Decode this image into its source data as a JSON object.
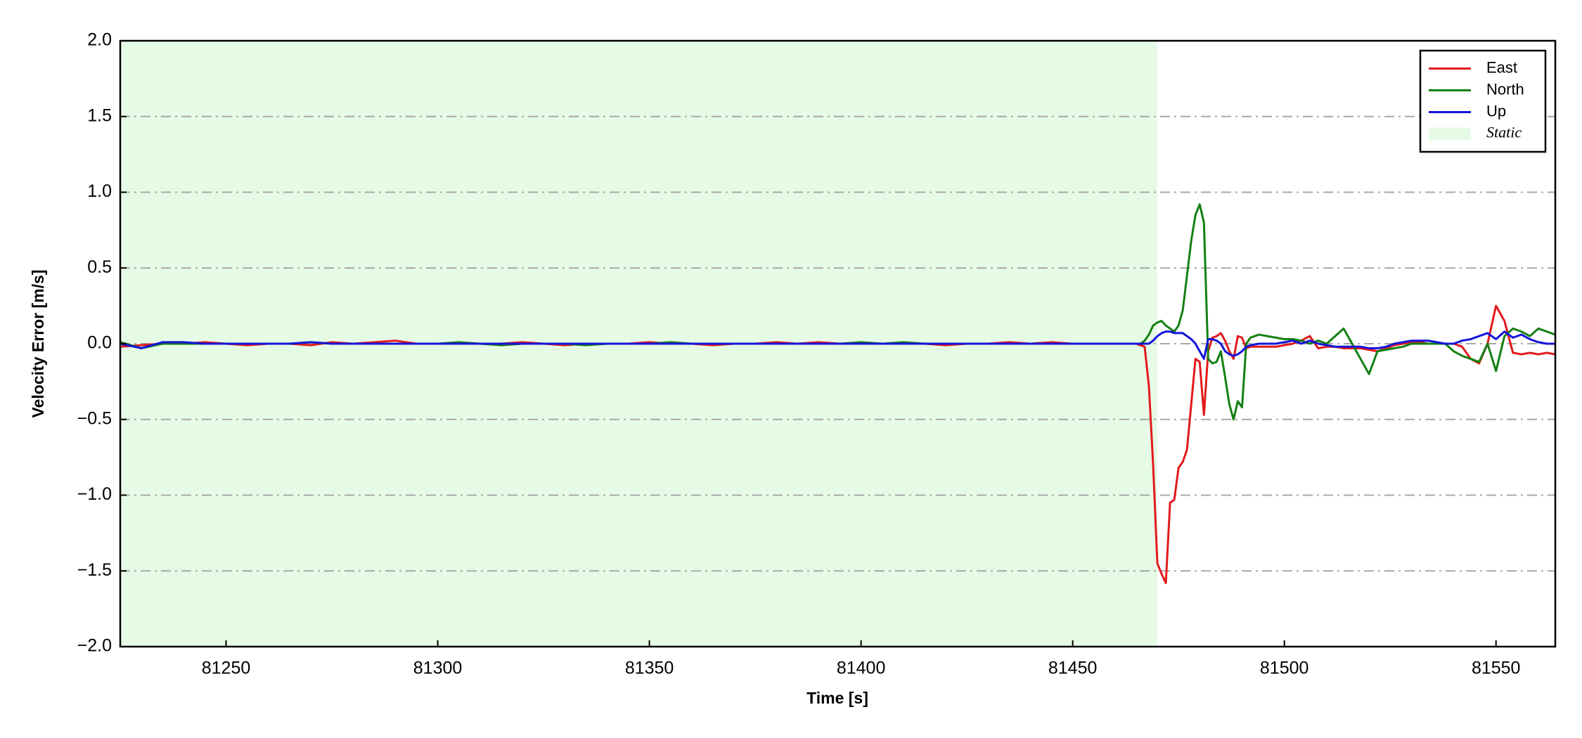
{
  "chart_data": {
    "type": "line",
    "xlabel": "Time [s]",
    "ylabel": "Velocity Error [m/s]",
    "xlim": [
      81225,
      81564
    ],
    "ylim": [
      -2,
      2
    ],
    "xticks": [
      81250,
      81300,
      81350,
      81400,
      81450,
      81500,
      81550
    ],
    "yticks": [
      {
        "value": 2,
        "label": "2.0"
      },
      {
        "value": 1.5,
        "label": "1.5"
      },
      {
        "value": 1,
        "label": "1.0"
      },
      {
        "value": 0.5,
        "label": "0.5"
      },
      {
        "value": 0,
        "label": "0.0"
      },
      {
        "value": -0.5,
        "label": "−0.5"
      },
      {
        "value": -1,
        "label": "−1.0"
      },
      {
        "value": -1.5,
        "label": "−1.5"
      },
      {
        "value": -2,
        "label": "−2.0"
      }
    ],
    "grid": true,
    "legend_position": "upper-right",
    "shaded_regions": [
      {
        "name": "Static",
        "color": "#e6fbe6",
        "x": [
          81225,
          81470
        ]
      }
    ],
    "x": [
      81225,
      81230,
      81235,
      81240,
      81245,
      81250,
      81255,
      81260,
      81265,
      81270,
      81275,
      81280,
      81285,
      81290,
      81295,
      81300,
      81305,
      81310,
      81315,
      81320,
      81325,
      81330,
      81335,
      81340,
      81345,
      81350,
      81355,
      81360,
      81365,
      81370,
      81375,
      81380,
      81385,
      81390,
      81395,
      81400,
      81405,
      81410,
      81415,
      81420,
      81425,
      81430,
      81435,
      81440,
      81445,
      81450,
      81455,
      81460,
      81465,
      81466,
      81467,
      81468,
      81469,
      81470,
      81471,
      81472,
      81473,
      81474,
      81475,
      81476,
      81477,
      81478,
      81479,
      81480,
      81481,
      81482,
      81483,
      81484,
      81485,
      81486,
      81487,
      81488,
      81489,
      81490,
      81491,
      81492,
      81494,
      81496,
      81498,
      81500,
      81502,
      81504,
      81506,
      81508,
      81510,
      81512,
      81514,
      81516,
      81518,
      81520,
      81522,
      81524,
      81526,
      81528,
      81530,
      81532,
      81534,
      81536,
      81538,
      81540,
      81542,
      81544,
      81546,
      81548,
      81550,
      81552,
      81554,
      81556,
      81558,
      81560,
      81562,
      81564
    ],
    "series": [
      {
        "name": "East",
        "color": "#e31a1c",
        "values": [
          -0.02,
          -0.01,
          0.0,
          0.0,
          0.01,
          0.0,
          -0.01,
          0.0,
          0.0,
          -0.01,
          0.01,
          0.0,
          0.01,
          0.02,
          0.0,
          0.0,
          0.0,
          0.0,
          0.0,
          0.01,
          0.0,
          -0.01,
          0.0,
          0.0,
          0.0,
          0.01,
          0.0,
          0.0,
          -0.01,
          0.0,
          0.0,
          0.01,
          0.0,
          0.01,
          0.0,
          0.0,
          0.0,
          0.0,
          0.0,
          -0.01,
          0.0,
          0.0,
          0.01,
          0.0,
          0.01,
          0.0,
          0.0,
          0.0,
          0.0,
          -0.01,
          -0.02,
          -0.28,
          -0.8,
          -1.45,
          -1.52,
          -1.58,
          -1.05,
          -1.03,
          -0.82,
          -0.78,
          -0.7,
          -0.4,
          -0.1,
          -0.12,
          -0.47,
          -0.05,
          0.04,
          0.05,
          0.07,
          0.02,
          -0.05,
          -0.1,
          0.05,
          0.04,
          -0.03,
          -0.02,
          -0.02,
          -0.02,
          -0.02,
          -0.01,
          0.0,
          0.02,
          0.05,
          -0.03,
          -0.02,
          -0.02,
          -0.03,
          -0.03,
          -0.03,
          -0.04,
          -0.05,
          -0.03,
          -0.01,
          0.0,
          0.01,
          0.01,
          0.0,
          0.0,
          0.0,
          0.0,
          -0.02,
          -0.1,
          -0.13,
          0.0,
          0.25,
          0.15,
          -0.06,
          -0.07,
          -0.06,
          -0.07,
          -0.06,
          -0.07
        ]
      },
      {
        "name": "North",
        "color": "#138013",
        "values": [
          0.01,
          -0.03,
          0.0,
          0.0,
          0.0,
          0.0,
          0.0,
          0.0,
          0.0,
          0.01,
          0.0,
          0.0,
          0.0,
          0.0,
          0.0,
          0.0,
          0.01,
          0.0,
          -0.01,
          0.0,
          0.0,
          0.0,
          -0.01,
          0.0,
          0.0,
          0.0,
          0.01,
          0.0,
          0.0,
          0.0,
          0.0,
          0.0,
          0.0,
          0.0,
          0.0,
          0.01,
          0.0,
          0.01,
          0.0,
          0.0,
          0.0,
          0.0,
          0.0,
          0.0,
          0.0,
          0.0,
          0.0,
          0.0,
          0.0,
          0.0,
          0.02,
          0.06,
          0.12,
          0.14,
          0.15,
          0.12,
          0.1,
          0.08,
          0.12,
          0.22,
          0.45,
          0.68,
          0.85,
          0.92,
          0.8,
          -0.1,
          -0.13,
          -0.12,
          -0.05,
          -0.22,
          -0.4,
          -0.5,
          -0.38,
          -0.42,
          0.0,
          0.04,
          0.06,
          0.05,
          0.04,
          0.03,
          0.03,
          0.02,
          0.0,
          0.02,
          0.0,
          0.05,
          0.1,
          0.0,
          -0.1,
          -0.2,
          -0.05,
          -0.04,
          -0.03,
          -0.02,
          0.0,
          0.0,
          0.0,
          0.0,
          0.0,
          -0.05,
          -0.08,
          -0.1,
          -0.12,
          0.0,
          -0.18,
          0.05,
          0.1,
          0.08,
          0.05,
          0.1,
          0.08,
          0.06
        ]
      },
      {
        "name": "Up",
        "color": "#1414d9",
        "values": [
          0.0,
          -0.03,
          0.01,
          0.01,
          0.0,
          0.0,
          0.0,
          0.0,
          0.0,
          0.01,
          0.0,
          0.0,
          0.0,
          0.0,
          0.0,
          0.0,
          0.0,
          0.0,
          0.0,
          0.0,
          0.0,
          0.0,
          0.0,
          0.0,
          0.0,
          0.0,
          0.0,
          0.0,
          0.0,
          0.0,
          0.0,
          0.0,
          0.0,
          0.0,
          0.0,
          0.0,
          0.0,
          0.0,
          0.0,
          0.0,
          0.0,
          0.0,
          0.0,
          0.0,
          0.0,
          0.0,
          0.0,
          0.0,
          0.0,
          0.0,
          0.0,
          0.0,
          0.02,
          0.05,
          0.07,
          0.08,
          0.08,
          0.07,
          0.07,
          0.07,
          0.05,
          0.03,
          0.0,
          -0.05,
          -0.1,
          0.03,
          0.03,
          0.02,
          0.0,
          -0.05,
          -0.07,
          -0.08,
          -0.07,
          -0.05,
          -0.02,
          -0.01,
          0.0,
          0.0,
          0.0,
          0.01,
          0.02,
          0.0,
          0.02,
          0.0,
          -0.01,
          -0.02,
          -0.02,
          -0.02,
          -0.02,
          -0.03,
          -0.03,
          -0.02,
          0.0,
          0.01,
          0.02,
          0.02,
          0.02,
          0.01,
          0.0,
          0.0,
          0.02,
          0.03,
          0.05,
          0.07,
          0.03,
          0.08,
          0.04,
          0.06,
          0.03,
          0.01,
          0.0,
          0.0
        ]
      }
    ]
  }
}
